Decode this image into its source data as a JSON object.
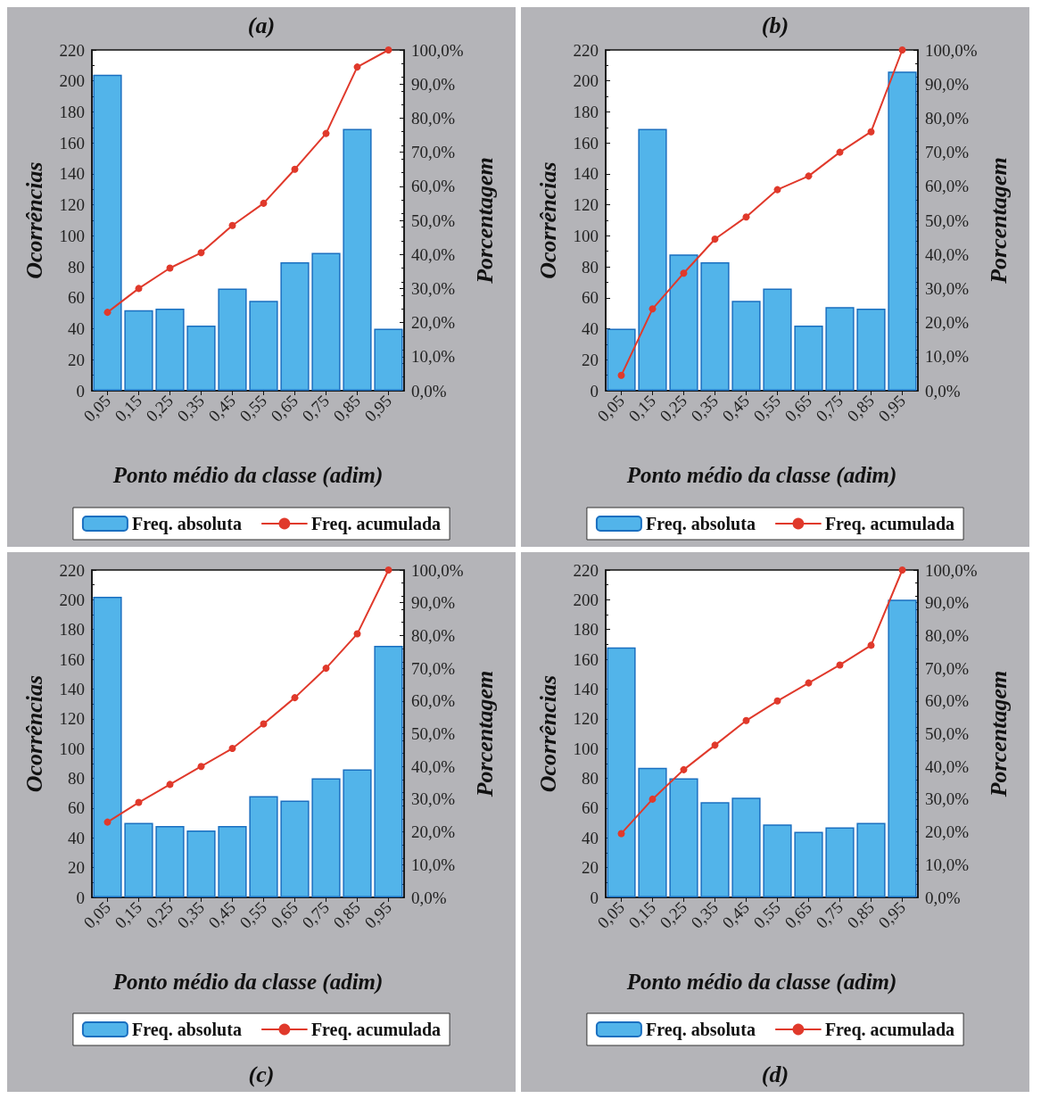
{
  "chart_data": [
    {
      "type": "bar",
      "title": "(a)",
      "categories": [
        "0,05",
        "0,15",
        "0,25",
        "0,35",
        "0,45",
        "0,55",
        "0,65",
        "0,75",
        "0,85",
        "0,95"
      ],
      "xlabel": "Ponto médio da classe (adim)",
      "ylabel": "Ocorrências",
      "y2label": "Porcentagem",
      "ylim": [
        0,
        220
      ],
      "yticks": [
        0,
        20,
        40,
        60,
        80,
        100,
        120,
        140,
        160,
        180,
        200,
        220
      ],
      "y2lim": [
        0,
        100
      ],
      "y2ticks": [
        {
          "value": 0,
          "label": "0,0%"
        },
        {
          "value": 10,
          "label": "10,0%"
        },
        {
          "value": 20,
          "label": "20,0%"
        },
        {
          "value": 30,
          "label": "30,0%"
        },
        {
          "value": 40,
          "label": "40,0%"
        },
        {
          "value": 50,
          "label": "50,0%"
        },
        {
          "value": 60,
          "label": "60,0%"
        },
        {
          "value": 70,
          "label": "70,0%"
        },
        {
          "value": 80,
          "label": "80,0%"
        },
        {
          "value": 90,
          "label": "90,0%"
        },
        {
          "value": 100,
          "label": "100,0%"
        }
      ],
      "legend": "bottom",
      "marker": "circle",
      "line_style": "solid",
      "series": [
        {
          "name": "Freq. absoluta",
          "color": "#52b4ea",
          "values": [
            204,
            52,
            53,
            42,
            66,
            58,
            83,
            89,
            169,
            40
          ]
        },
        {
          "name": "Freq. acumulada",
          "type": "line",
          "axis": "y2",
          "color": "#e0392b",
          "values": [
            23,
            30,
            36,
            40.5,
            48.5,
            55,
            65,
            75.5,
            95,
            100
          ]
        }
      ]
    },
    {
      "type": "bar",
      "title": "(b)",
      "categories": [
        "0,05",
        "0,15",
        "0,25",
        "0,35",
        "0,45",
        "0,55",
        "0,65",
        "0,75",
        "0,85",
        "0,95"
      ],
      "xlabel": "Ponto médio da classe (adim)",
      "ylabel": "Ocorrências",
      "y2label": "Porcentagem",
      "ylim": [
        0,
        220
      ],
      "yticks": [
        0,
        20,
        40,
        60,
        80,
        100,
        120,
        140,
        160,
        180,
        200,
        220
      ],
      "y2lim": [
        0,
        100
      ],
      "y2ticks": [
        {
          "value": 0,
          "label": "0,0%"
        },
        {
          "value": 10,
          "label": "10,0%"
        },
        {
          "value": 20,
          "label": "20,0%"
        },
        {
          "value": 30,
          "label": "30,0%"
        },
        {
          "value": 40,
          "label": "40,0%"
        },
        {
          "value": 50,
          "label": "50,0%"
        },
        {
          "value": 60,
          "label": "60,0%"
        },
        {
          "value": 70,
          "label": "70,0%"
        },
        {
          "value": 80,
          "label": "80,0%"
        },
        {
          "value": 90,
          "label": "90,0%"
        },
        {
          "value": 100,
          "label": "100,0%"
        }
      ],
      "legend": "bottom",
      "marker": "circle",
      "line_style": "solid",
      "series": [
        {
          "name": "Freq. absoluta",
          "color": "#52b4ea",
          "values": [
            40,
            169,
            88,
            83,
            58,
            66,
            42,
            54,
            53,
            206
          ]
        },
        {
          "name": "Freq. acumulada",
          "type": "line",
          "axis": "y2",
          "color": "#e0392b",
          "values": [
            4.5,
            24,
            34.5,
            44.5,
            51,
            59,
            63,
            70,
            76,
            100
          ]
        }
      ]
    },
    {
      "type": "bar",
      "title": "(c)",
      "categories": [
        "0,05",
        "0,15",
        "0,25",
        "0,35",
        "0,45",
        "0,55",
        "0,65",
        "0,75",
        "0,85",
        "0,95"
      ],
      "xlabel": "Ponto médio da classe (adim)",
      "ylabel": "Ocorrências",
      "y2label": "Porcentagem",
      "ylim": [
        0,
        220
      ],
      "yticks": [
        0,
        20,
        40,
        60,
        80,
        100,
        120,
        140,
        160,
        180,
        200,
        220
      ],
      "y2lim": [
        0,
        100
      ],
      "y2ticks": [
        {
          "value": 0,
          "label": "0,0%"
        },
        {
          "value": 10,
          "label": "10,0%"
        },
        {
          "value": 20,
          "label": "20,0%"
        },
        {
          "value": 30,
          "label": "30,0%"
        },
        {
          "value": 40,
          "label": "40,0%"
        },
        {
          "value": 50,
          "label": "50,0%"
        },
        {
          "value": 60,
          "label": "60,0%"
        },
        {
          "value": 70,
          "label": "70,0%"
        },
        {
          "value": 80,
          "label": "80,0%"
        },
        {
          "value": 90,
          "label": "90,0%"
        },
        {
          "value": 100,
          "label": "100,0%"
        }
      ],
      "legend": "bottom",
      "marker": "circle",
      "line_style": "solid",
      "series": [
        {
          "name": "Freq. absoluta",
          "color": "#52b4ea",
          "values": [
            202,
            50,
            48,
            45,
            48,
            68,
            65,
            80,
            86,
            169
          ]
        },
        {
          "name": "Freq. acumulada",
          "type": "line",
          "axis": "y2",
          "color": "#e0392b",
          "values": [
            23,
            29,
            34.5,
            40,
            45.5,
            53,
            61,
            70,
            80.5,
            100
          ]
        }
      ]
    },
    {
      "type": "bar",
      "title": "(d)",
      "categories": [
        "0,05",
        "0,15",
        "0,25",
        "0,35",
        "0,45",
        "0,55",
        "0,65",
        "0,75",
        "0,85",
        "0,95"
      ],
      "xlabel": "Ponto médio da classe (adim)",
      "ylabel": "Ocorrências",
      "y2label": "Porcentagem",
      "ylim": [
        0,
        220
      ],
      "yticks": [
        0,
        20,
        40,
        60,
        80,
        100,
        120,
        140,
        160,
        180,
        200,
        220
      ],
      "y2lim": [
        0,
        100
      ],
      "y2ticks": [
        {
          "value": 0,
          "label": "0,0%"
        },
        {
          "value": 10,
          "label": "10,0%"
        },
        {
          "value": 20,
          "label": "20,0%"
        },
        {
          "value": 30,
          "label": "30,0%"
        },
        {
          "value": 40,
          "label": "40,0%"
        },
        {
          "value": 50,
          "label": "50,0%"
        },
        {
          "value": 60,
          "label": "60,0%"
        },
        {
          "value": 70,
          "label": "70,0%"
        },
        {
          "value": 80,
          "label": "80,0%"
        },
        {
          "value": 90,
          "label": "90,0%"
        },
        {
          "value": 100,
          "label": "100,0%"
        }
      ],
      "legend": "bottom",
      "marker": "circle",
      "line_style": "solid",
      "series": [
        {
          "name": "Freq. absoluta",
          "color": "#52b4ea",
          "values": [
            168,
            87,
            80,
            64,
            67,
            49,
            44,
            47,
            50,
            200
          ]
        },
        {
          "name": "Freq. acumulada",
          "type": "line",
          "axis": "y2",
          "color": "#e0392b",
          "values": [
            19.5,
            30,
            39,
            46.5,
            54,
            60,
            65.5,
            71,
            77,
            100
          ]
        }
      ]
    }
  ]
}
